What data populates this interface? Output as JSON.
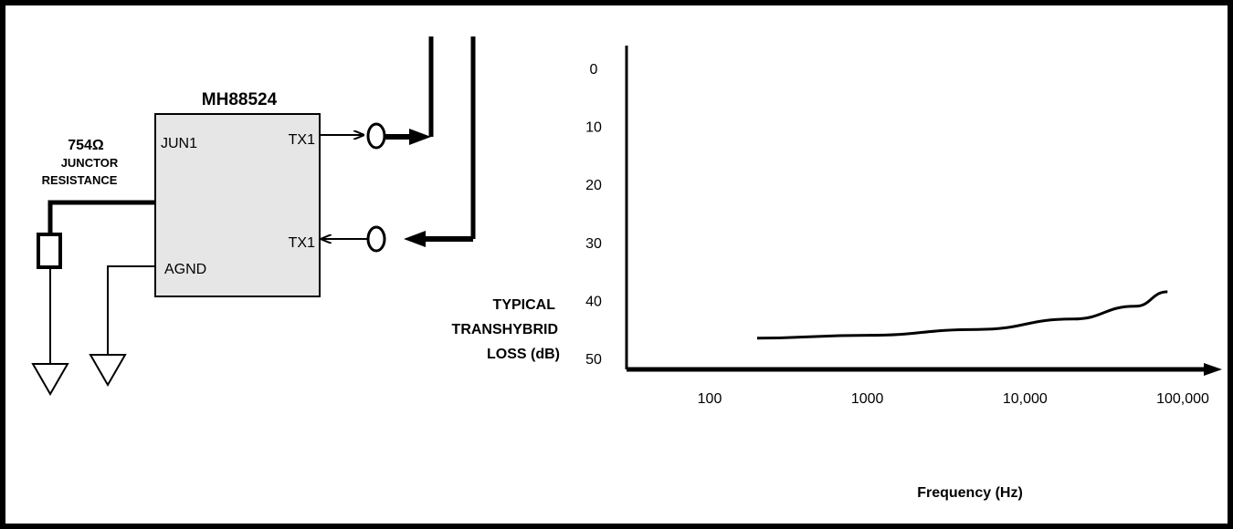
{
  "circuit": {
    "chip_name": "MH88524",
    "pins": {
      "jun1": "JUN1",
      "tx1_out": "TX1",
      "tx1_in": "TX1",
      "agnd": "AGND"
    },
    "resistor": {
      "value": "754Ω",
      "label_line1": "JUNCTOR",
      "label_line2": "RESISTANCE"
    }
  },
  "chart_data": {
    "type": "line",
    "title": "",
    "ylabel_lines": [
      "TYPICAL",
      "TRANSHYBRID",
      "LOSS  (dB)"
    ],
    "xlabel": "Frequency (Hz)",
    "y_ticks": [
      "0",
      "10",
      "20",
      "30",
      "40",
      "50"
    ],
    "x_ticks": [
      "100",
      "1000",
      "10,000",
      "100,000"
    ],
    "x_scale": "log",
    "y_inverted": true,
    "ylim": [
      0,
      50
    ],
    "series": [
      {
        "x": [
          200,
          1000,
          5000,
          20000,
          50000,
          80000
        ],
        "y": [
          46.5,
          46.0,
          45.0,
          43.2,
          41.0,
          38.5
        ]
      }
    ]
  }
}
